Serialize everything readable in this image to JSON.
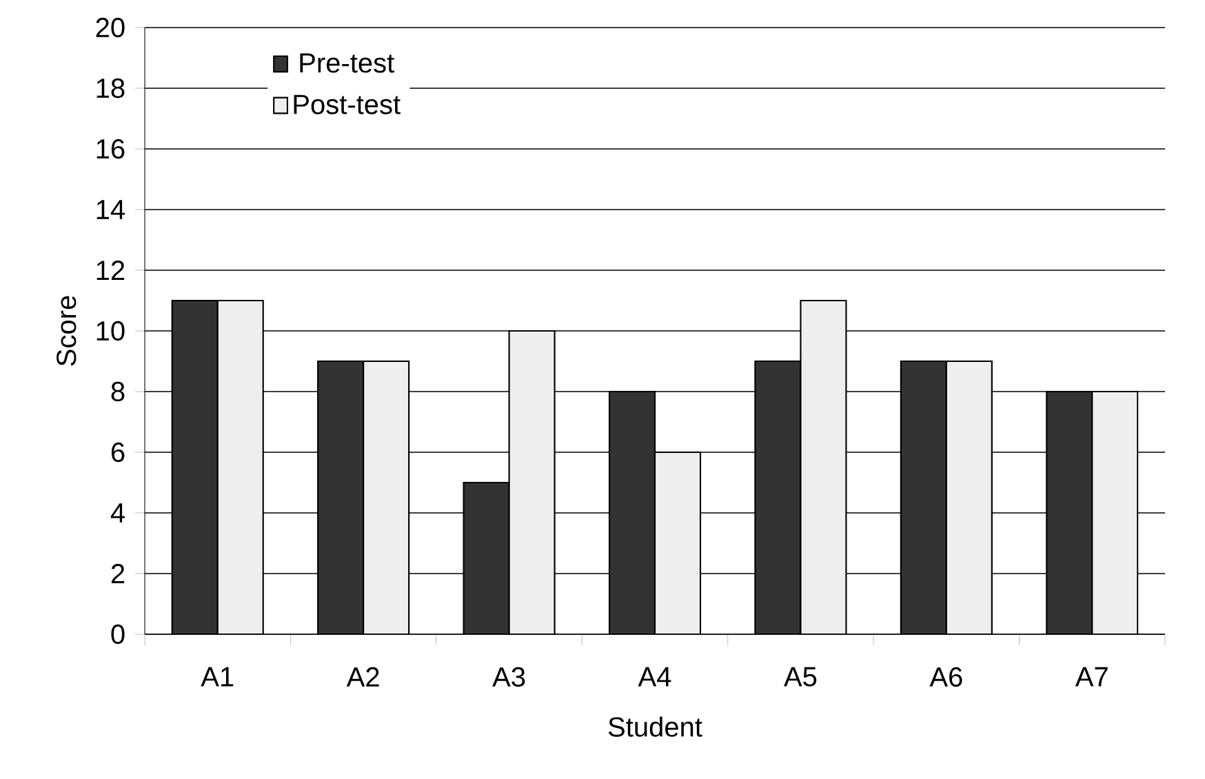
{
  "chart_data": {
    "type": "bar",
    "xlabel": "Student",
    "ylabel": "Score",
    "categories": [
      "A1",
      "A2",
      "A3",
      "A4",
      "A5",
      "A6",
      "A7"
    ],
    "series": [
      {
        "name": "Pre-test",
        "color": "#333333",
        "values": [
          11,
          9,
          5,
          8,
          9,
          9,
          8
        ]
      },
      {
        "name": "Post-test",
        "color": "#eeeeee",
        "values": [
          11,
          9,
          10,
          6,
          11,
          9,
          8
        ]
      }
    ],
    "ylim": [
      0,
      20
    ],
    "yticks": [
      0,
      2,
      4,
      6,
      8,
      10,
      12,
      14,
      16,
      18,
      20
    ],
    "grid": "y",
    "legend": "top left"
  }
}
